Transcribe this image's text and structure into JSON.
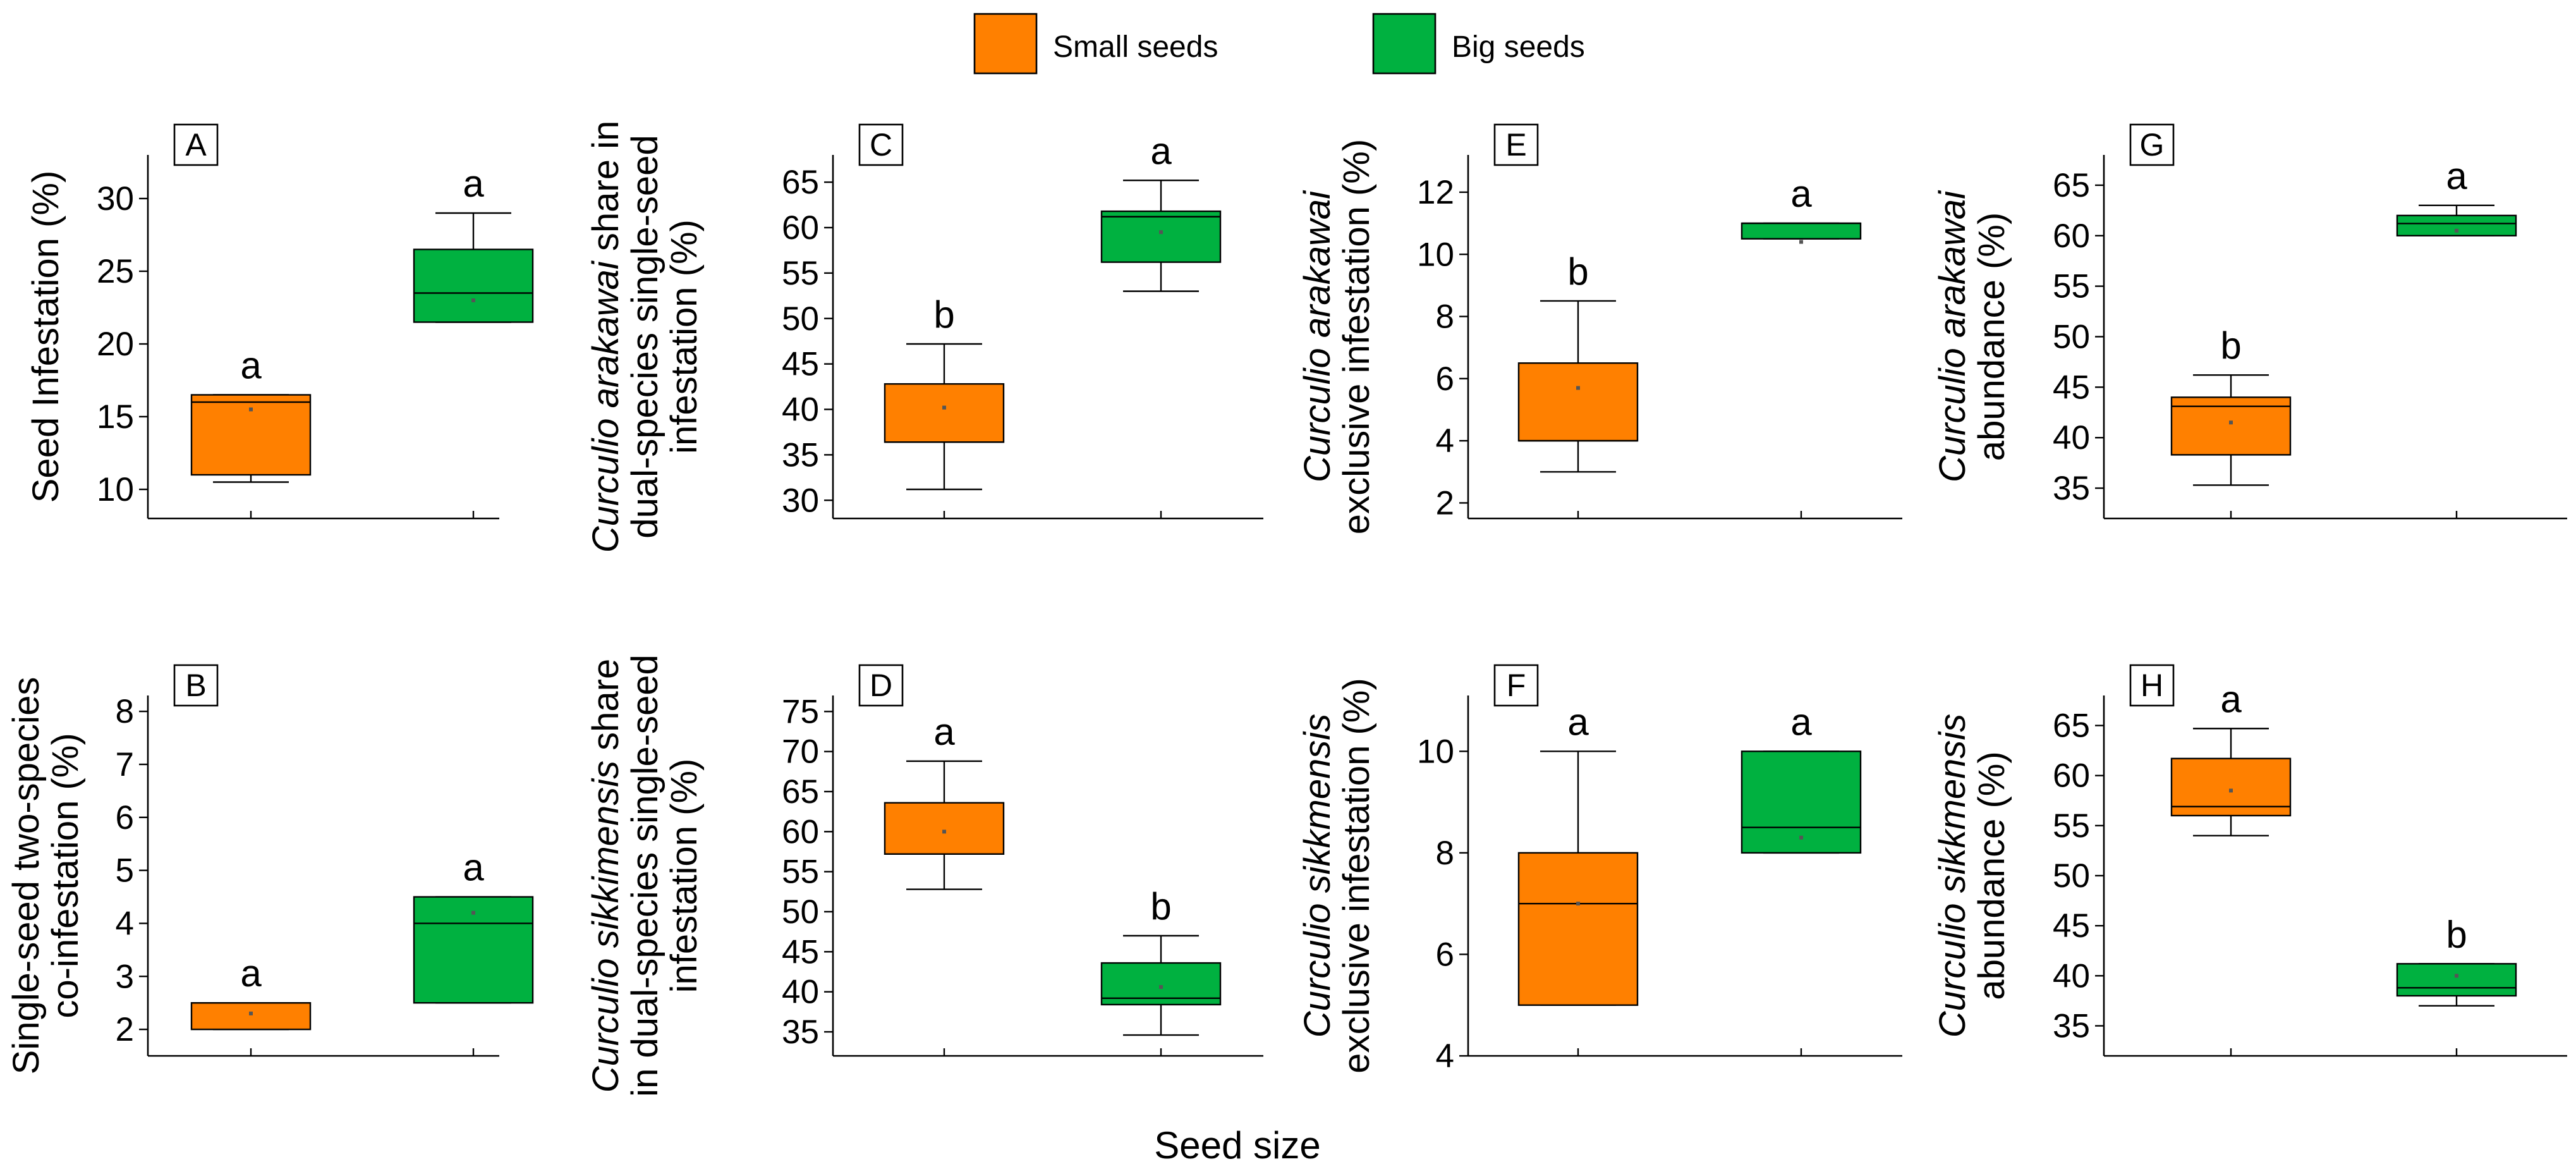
{
  "colors": {
    "small": "#FF8000",
    "big": "#00B140",
    "axis": "#000000"
  },
  "legend": {
    "small_label": "Small seeds",
    "big_label": "Big seeds"
  },
  "xlabel": "Seed size",
  "chart_data": [
    {
      "id": "A",
      "type": "box",
      "ylabel": [
        "Seed Infestation (%)"
      ],
      "italic_words": [],
      "ylim": [
        8,
        33
      ],
      "ticks": [
        10,
        15,
        20,
        25,
        30
      ],
      "small": {
        "min": 10.5,
        "q1": 11,
        "median": 16,
        "q3": 16.5,
        "max": 16.5,
        "mean": 15.5,
        "letter": "a"
      },
      "big": {
        "min": 21.5,
        "q1": 21.5,
        "median": 23.5,
        "q3": 26.5,
        "max": 29,
        "mean": 23,
        "letter": "a"
      }
    },
    {
      "id": "B",
      "type": "box",
      "ylabel": [
        "Single-seed two-species",
        "co-infestation (%)"
      ],
      "italic_words": [],
      "ylim": [
        1.5,
        8.3
      ],
      "ticks": [
        2,
        3,
        4,
        5,
        6,
        7,
        8
      ],
      "small": {
        "min": 2,
        "q1": 2,
        "median": 2.5,
        "q3": 2.5,
        "max": 2.5,
        "mean": 2.3,
        "letter": "a"
      },
      "big": {
        "min": 2.5,
        "q1": 2.5,
        "median": 4,
        "q3": 4.5,
        "max": 4.5,
        "mean": 4.2,
        "letter": "a"
      }
    },
    {
      "id": "C",
      "type": "box",
      "ylabel": [
        "Curculio arakawai share in",
        "dual-species single-seed",
        "infestation (%)"
      ],
      "italic_words": [
        "Curculio arakawai"
      ],
      "ylim": [
        28,
        68
      ],
      "ticks": [
        30,
        35,
        40,
        45,
        50,
        55,
        60,
        65
      ],
      "small": {
        "min": 31.2,
        "q1": 36.4,
        "median": 36.4,
        "q3": 42.8,
        "max": 47.2,
        "mean": 40.2,
        "letter": "b"
      },
      "big": {
        "min": 53,
        "q1": 56.2,
        "median": 61.2,
        "q3": 61.8,
        "max": 65.2,
        "mean": 59.5,
        "letter": "a"
      }
    },
    {
      "id": "D",
      "type": "box",
      "ylabel": [
        "Curculio sikkimensis share",
        "in dual-species single-seed",
        "infestation (%)"
      ],
      "italic_words": [
        "Curculio sikkimensis"
      ],
      "ylim": [
        32,
        77
      ],
      "ticks": [
        35,
        40,
        45,
        50,
        55,
        60,
        65,
        70,
        75
      ],
      "small": {
        "min": 52.8,
        "q1": 57.2,
        "median": 57.2,
        "q3": 63.6,
        "max": 68.8,
        "mean": 60,
        "letter": "a"
      },
      "big": {
        "min": 34.6,
        "q1": 38.4,
        "median": 39.2,
        "q3": 43.6,
        "max": 47,
        "mean": 40.6,
        "letter": "b"
      }
    },
    {
      "id": "E",
      "type": "box",
      "ylabel": [
        "Curculio arakawai",
        "exclusive infestation (%)"
      ],
      "italic_words": [
        "Curculio arakawai"
      ],
      "ylim": [
        1.5,
        13.2
      ],
      "ticks": [
        2,
        4,
        6,
        8,
        10,
        12
      ],
      "small": {
        "min": 3,
        "q1": 4,
        "median": 4,
        "q3": 6.5,
        "max": 8.5,
        "mean": 5.7,
        "letter": "b"
      },
      "big": {
        "min": 10.5,
        "q1": 10.5,
        "median": 11,
        "q3": 11,
        "max": 11,
        "mean": 10.4,
        "letter": "a"
      }
    },
    {
      "id": "F",
      "type": "box",
      "ylabel": [
        "Curculio sikkmensis",
        "exclusive infestation (%)"
      ],
      "italic_words": [
        "Curculio sikkmensis"
      ],
      "ylim": [
        4,
        11.1
      ],
      "ticks": [
        4,
        6,
        8,
        10
      ],
      "small": {
        "min": 5,
        "q1": 5,
        "median": 7,
        "q3": 8,
        "max": 10,
        "mean": 7,
        "letter": "a"
      },
      "big": {
        "min": 8,
        "q1": 8,
        "median": 8.5,
        "q3": 10,
        "max": 10,
        "mean": 8.3,
        "letter": "a"
      }
    },
    {
      "id": "G",
      "type": "box",
      "ylabel": [
        "Curculio arakawai",
        "abundance (%)"
      ],
      "italic_words": [
        "Curculio arakawai"
      ],
      "ylim": [
        32,
        68
      ],
      "ticks": [
        35,
        40,
        45,
        50,
        55,
        60,
        65
      ],
      "small": {
        "min": 35.3,
        "q1": 38.3,
        "median": 43.1,
        "q3": 44,
        "max": 46.2,
        "mean": 41.5,
        "letter": "b"
      },
      "big": {
        "min": 60,
        "q1": 60,
        "median": 61.2,
        "q3": 62,
        "max": 63,
        "mean": 60.5,
        "letter": "a"
      }
    },
    {
      "id": "H",
      "type": "box",
      "ylabel": [
        "Curculio sikkmensis",
        "abundance (%)"
      ],
      "italic_words": [
        "Curculio sikkmensis"
      ],
      "ylim": [
        32,
        68
      ],
      "ticks": [
        35,
        40,
        45,
        50,
        55,
        60,
        65
      ],
      "small": {
        "min": 54,
        "q1": 56,
        "median": 56.9,
        "q3": 61.7,
        "max": 64.7,
        "mean": 58.5,
        "letter": "a"
      },
      "big": {
        "min": 37,
        "q1": 38,
        "median": 38.8,
        "q3": 41.2,
        "max": 41.2,
        "mean": 40,
        "letter": "b"
      }
    }
  ]
}
